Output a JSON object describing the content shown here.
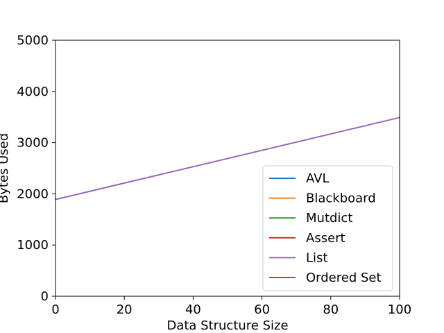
{
  "chart_data": {
    "type": "line",
    "title": "",
    "xlabel": "Data Structure Size",
    "ylabel": "Bytes Used",
    "xlim": [
      0,
      100
    ],
    "ylim": [
      0,
      5000
    ],
    "xticks": [
      0,
      20,
      40,
      60,
      80,
      100
    ],
    "yticks": [
      0,
      1000,
      2000,
      3000,
      4000,
      5000
    ],
    "xtick_labels": [
      "0",
      "20",
      "40",
      "60",
      "80",
      "100"
    ],
    "ytick_labels": [
      "0",
      "1000",
      "2000",
      "3000",
      "4000",
      "5000"
    ],
    "grid": false,
    "legend_position": "lower-right",
    "series": [
      {
        "name": "AVL",
        "color": "#1f77b4",
        "x": [],
        "y": []
      },
      {
        "name": "Blackboard",
        "color": "#ff7f0e",
        "x": [],
        "y": []
      },
      {
        "name": "Mutdict",
        "color": "#2ca02c",
        "x": [],
        "y": []
      },
      {
        "name": "Assert",
        "color": "#d62728",
        "x": [],
        "y": []
      },
      {
        "name": "List",
        "color": "#9467bd",
        "x": [
          0,
          100
        ],
        "y": [
          1890,
          3490
        ]
      },
      {
        "name": "Ordered Set",
        "color": "#8c564b",
        "x": [],
        "y": []
      }
    ]
  }
}
